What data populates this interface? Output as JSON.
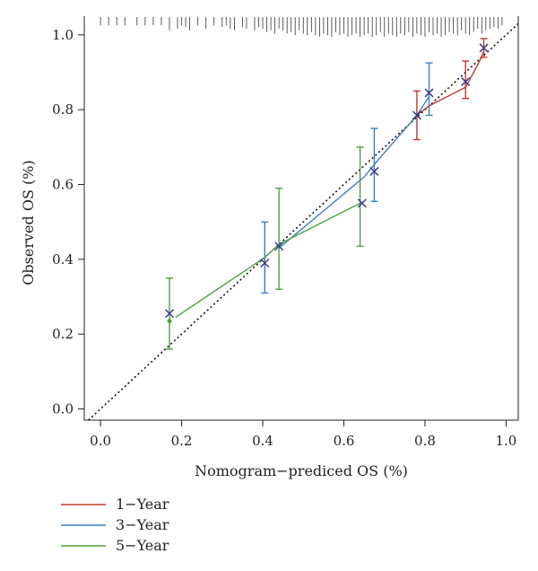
{
  "chart_data": {
    "type": "line",
    "xlabel": "Nomogram−prediced OS (%)",
    "ylabel": "Observed OS (%)",
    "xlim": [
      -0.04,
      1.03
    ],
    "ylim": [
      -0.03,
      1.05
    ],
    "x_ticks": [
      "0.0",
      "0.2",
      "0.4",
      "0.6",
      "0.8",
      "1.0"
    ],
    "y_ticks": [
      "0.0",
      "0.2",
      "0.4",
      "0.6",
      "0.8",
      "1.0"
    ],
    "reference_line": {
      "x": [
        0,
        1
      ],
      "y": [
        0,
        1
      ],
      "style": "dotted"
    },
    "series": [
      {
        "name": "1−Year",
        "color": "#c0392b",
        "line": {
          "x": [
            0.785,
            0.81,
            0.9,
            0.93,
            0.945
          ],
          "y": [
            0.79,
            0.81,
            0.86,
            0.92,
            0.955
          ]
        },
        "points": [
          {
            "x": 0.78,
            "y": 0.785,
            "lo": 0.72,
            "hi": 0.85
          },
          {
            "x": 0.9,
            "y": 0.875,
            "lo": 0.83,
            "hi": 0.93
          },
          {
            "x": 0.945,
            "y": 0.965,
            "lo": 0.94,
            "hi": 0.99
          }
        ]
      },
      {
        "name": "3−Year",
        "color": "#3a7fc9",
        "line": {
          "x": [
            0.44,
            0.65,
            0.68,
            0.78,
            0.81
          ],
          "y": [
            0.43,
            0.62,
            0.66,
            0.785,
            0.835
          ]
        },
        "points": [
          {
            "x": 0.405,
            "y": 0.39,
            "lo": 0.31,
            "hi": 0.5
          },
          {
            "x": 0.44,
            "y": 0.435,
            "lo": null,
            "hi": null
          },
          {
            "x": 0.675,
            "y": 0.635,
            "lo": 0.555,
            "hi": 0.75
          },
          {
            "x": 0.81,
            "y": 0.845,
            "lo": 0.785,
            "hi": 0.925
          }
        ]
      },
      {
        "name": "5−Year",
        "color": "#4aa33a",
        "line": {
          "x": [
            0.185,
            0.405,
            0.44,
            0.64
          ],
          "y": [
            0.245,
            0.405,
            0.44,
            0.55
          ]
        },
        "points": [
          {
            "x": 0.17,
            "y": 0.235,
            "lo": 0.16,
            "hi": 0.35
          },
          {
            "x": 0.44,
            "y": 0.435,
            "lo": 0.32,
            "hi": 0.59
          },
          {
            "x": 0.64,
            "y": 0.55,
            "lo": 0.435,
            "hi": 0.7
          }
        ]
      }
    ],
    "markers": [
      {
        "x": 0.17,
        "y": 0.255
      },
      {
        "x": 0.405,
        "y": 0.39
      },
      {
        "x": 0.44,
        "y": 0.435
      },
      {
        "x": 0.645,
        "y": 0.55
      },
      {
        "x": 0.675,
        "y": 0.635
      },
      {
        "x": 0.78,
        "y": 0.785
      },
      {
        "x": 0.81,
        "y": 0.845
      },
      {
        "x": 0.9,
        "y": 0.875
      },
      {
        "x": 0.945,
        "y": 0.965
      }
    ],
    "marker_color": "#3b3b8f",
    "rug": {
      "x": [
        0.0,
        0.02,
        0.04,
        0.06,
        0.09,
        0.11,
        0.13,
        0.15,
        0.17,
        0.19,
        0.2,
        0.21,
        0.22,
        0.24,
        0.26,
        0.28,
        0.3,
        0.31,
        0.32,
        0.33,
        0.35,
        0.36,
        0.38,
        0.39,
        0.4,
        0.41,
        0.42,
        0.43,
        0.44,
        0.45,
        0.46,
        0.47,
        0.48,
        0.49,
        0.5,
        0.51,
        0.52,
        0.53,
        0.54,
        0.55,
        0.56,
        0.57,
        0.58,
        0.59,
        0.6,
        0.61,
        0.62,
        0.63,
        0.64,
        0.65,
        0.66,
        0.67,
        0.68,
        0.69,
        0.7,
        0.71,
        0.72,
        0.73,
        0.74,
        0.75,
        0.76,
        0.77,
        0.78,
        0.79,
        0.8,
        0.81,
        0.82,
        0.83,
        0.84,
        0.85,
        0.86,
        0.87,
        0.88,
        0.89,
        0.9,
        0.91,
        0.92,
        0.93,
        0.94,
        0.95,
        0.96,
        0.97,
        0.98,
        0.99
      ],
      "h": [
        0.3,
        0.3,
        0.3,
        0.3,
        0.3,
        0.3,
        0.3,
        0.3,
        0.6,
        0.5,
        0.3,
        0.4,
        0.6,
        0.3,
        0.5,
        0.3,
        0.4,
        0.3,
        0.5,
        0.6,
        0.4,
        0.5,
        0.6,
        0.4,
        0.5,
        0.7,
        0.6,
        0.8,
        0.5,
        0.6,
        0.8,
        0.7,
        0.9,
        0.6,
        0.8,
        0.9,
        0.7,
        0.9,
        1.0,
        0.8,
        0.9,
        1.0,
        0.7,
        0.9,
        0.8,
        1.0,
        0.9,
        0.8,
        1.0,
        0.9,
        0.8,
        1.0,
        0.9,
        0.7,
        1.0,
        0.8,
        0.9,
        1.0,
        0.8,
        0.9,
        0.7,
        1.0,
        0.8,
        0.9,
        1.0,
        0.7,
        0.9,
        0.8,
        1.0,
        0.9,
        0.7,
        0.8,
        0.9,
        0.6,
        0.8,
        0.9,
        0.7,
        0.5,
        0.8,
        0.6,
        0.5,
        0.4,
        0.5,
        0.3
      ]
    }
  }
}
